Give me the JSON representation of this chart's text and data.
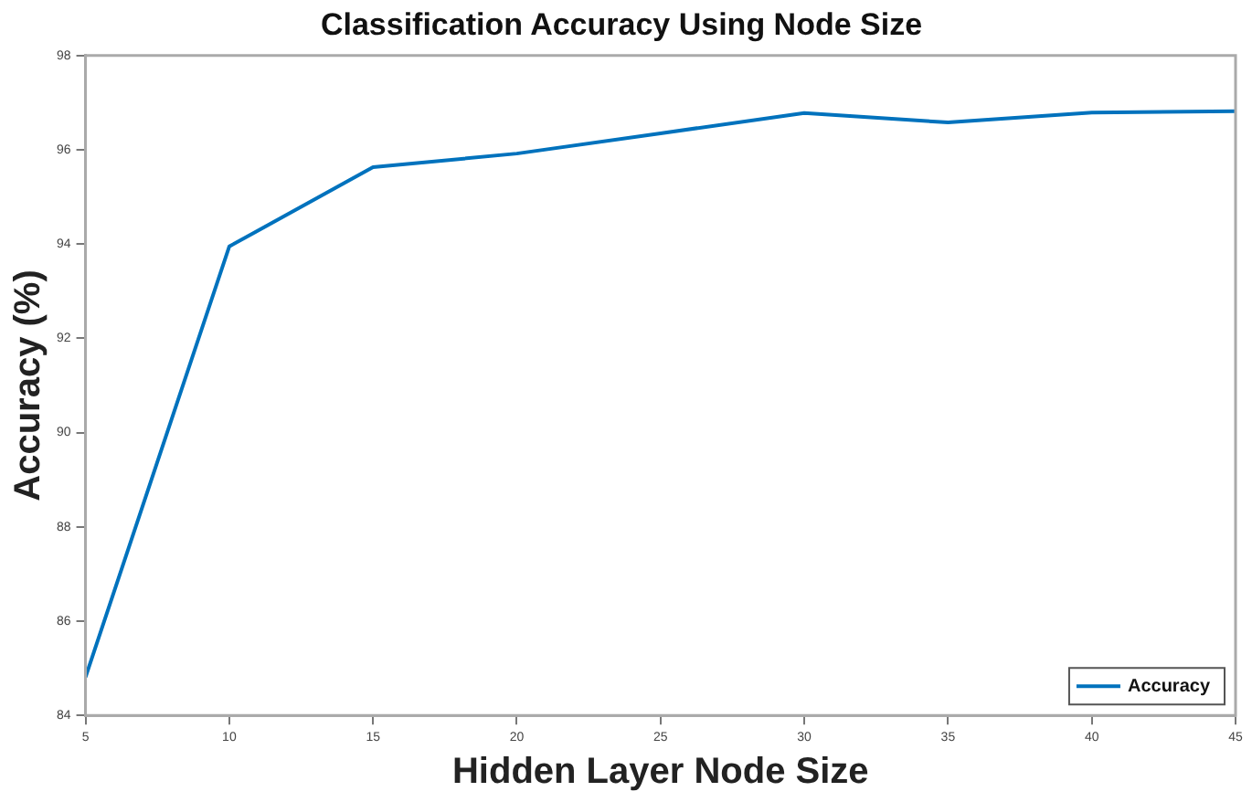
{
  "chart_data": {
    "type": "line",
    "title": "Classification Accuracy Using Node Size",
    "xlabel": "Hidden Layer Node Size",
    "ylabel": "Accuracy (%)",
    "x": [
      5,
      10,
      15,
      20,
      25,
      30,
      35,
      40,
      45
    ],
    "series": [
      {
        "name": "Accuracy",
        "color": "#0072bd",
        "values": [
          84.81,
          93.95,
          95.63,
          95.92,
          96.35,
          96.78,
          96.58,
          96.79,
          96.82
        ]
      }
    ],
    "xlim": [
      5,
      45
    ],
    "xticks": [
      5,
      10,
      15,
      20,
      25,
      30,
      35,
      40,
      45
    ],
    "ylim": [
      84,
      98
    ],
    "yticks": [
      84,
      86,
      88,
      90,
      92,
      94,
      96,
      98
    ],
    "grid": false,
    "legend": "bottom right",
    "marker": "none",
    "line_style": "solid"
  }
}
